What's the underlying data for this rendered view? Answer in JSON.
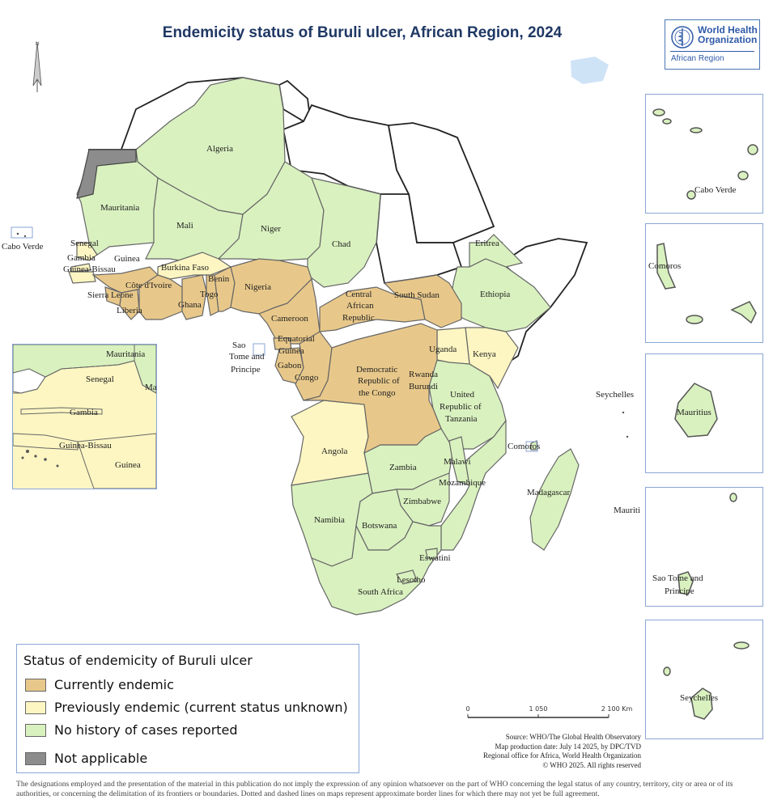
{
  "title": "Endemicity status of Buruli ulcer, African Region, 2024",
  "logo": {
    "name_line1": "World Health",
    "name_line2": "Organization",
    "region": "African Region"
  },
  "colors": {
    "currently_endemic": "#e8c88a",
    "previously_endemic": "#fdf6c2",
    "no_history": "#d9f1bf",
    "not_applicable": "#8c8c8c",
    "outside_region": "#ffffff",
    "water": "#cfe3f7",
    "border": "#555555"
  },
  "legend": {
    "title": "Status of endemicity of Buruli ulcer",
    "items": [
      {
        "key": "currently_endemic",
        "label": "Currently endemic"
      },
      {
        "key": "previously_endemic",
        "label": "Previously endemic (current status unknown)"
      },
      {
        "key": "no_history",
        "label": "No history of cases reported"
      },
      {
        "key": "not_applicable",
        "label": "Not applicable"
      }
    ]
  },
  "countries": {
    "currently_endemic": [
      "Nigeria",
      "Benin",
      "Togo",
      "Ghana",
      "Cote d'Ivoire",
      "Liberia",
      "Sierra Leone",
      "Cameroon",
      "Central African Republic",
      "South Sudan",
      "Equatorial Guinea",
      "Gabon",
      "Congo",
      "Democratic Republic of the Congo",
      "Guinea"
    ],
    "previously_endemic": [
      "Burkina Faso",
      "Angola",
      "Kenya",
      "Uganda",
      "Senegal",
      "Gambia",
      "Guinea-Bissau"
    ],
    "no_history": [
      "Algeria",
      "Mauritania",
      "Mali",
      "Niger",
      "Chad",
      "Eritrea",
      "Ethiopia",
      "Rwanda",
      "Burundi",
      "United Republic of Tanzania",
      "Zambia",
      "Malawi",
      "Mozambique",
      "Zimbabwe",
      "Namibia",
      "Botswana",
      "South Africa",
      "Eswatini",
      "Lesotho",
      "Madagascar",
      "Comoros",
      "Cabo Verde",
      "Sao Tome and Principe",
      "Mauritius",
      "Seychelles"
    ],
    "not_applicable": [
      "Western Sahara"
    ]
  },
  "map_labels": {
    "algeria": "Algeria",
    "mauritania": "Mauritania",
    "mali": "Mali",
    "niger": "Niger",
    "chad": "Chad",
    "eritrea": "Eritrea",
    "ethiopia": "Ethiopia",
    "senegal": "Senegal",
    "gambia": "Gambia",
    "guinea_bissau": "Guinea-Bissau",
    "guinea": "Guinea",
    "burkina_faso": "Burkina Faso",
    "benin": "Benin",
    "cote_divoire": "Côte d'Ivoire",
    "togo": "Togo",
    "sierra_leone": "Sierra Leone",
    "ghana": "Ghana",
    "liberia": "Liberia",
    "nigeria": "Nigeria",
    "cameroon": "Cameroon",
    "car_1": "Central",
    "car_2": "African",
    "car_3": "Republic",
    "south_sudan": "South Sudan",
    "stp_1": "Sao",
    "stp_2": "Tome and",
    "stp_3": "Principe",
    "eq_guinea_1": "Equatorial",
    "eq_guinea_2": "Guinea",
    "gabon": "Gabon",
    "congo": "Congo",
    "uganda": "Uganda",
    "kenya": "Kenya",
    "drc_1": "Democratic",
    "drc_2": "Republic of",
    "drc_3": "the Congo",
    "rwanda": "Rwanda",
    "burundi": "Burundi",
    "tanzania_1": "United",
    "tanzania_2": "Republic of",
    "tanzania_3": "Tanzania",
    "seychelles": "Seychelles",
    "angola": "Angola",
    "comoros": "Comoros",
    "zambia": "Zambia",
    "malawi": "Malawi",
    "mozambique": "Mozambique",
    "madagascar": "Madagascar",
    "mauriti": "Mauriti",
    "zimbabwe": "Zimbabwe",
    "namibia": "Namibia",
    "botswana": "Botswana",
    "eswatini": "Eswatini",
    "lesotho": "Lesotho",
    "south_africa": "South Africa",
    "cabo_verde": "Cabo Verde"
  },
  "insets": {
    "west_africa": {
      "mauritania": "Mauritania",
      "senegal": "Senegal",
      "ma": "Ma",
      "gambia": "Gambia",
      "guinea_bissau": "Guinea-Bissau",
      "guinea": "Guinea"
    },
    "cabo_verde": "Cabo Verde",
    "comoros": "Comoros",
    "mauritius": "Mauritius",
    "stp_1": "Sao Tome and",
    "stp_2": "Principe",
    "seychelles": "Seychelles"
  },
  "scalebar": {
    "t0": "0",
    "t1": "1 050",
    "t2": "2 100 Km"
  },
  "source": {
    "line1": "Source: WHO/The Global Health Observatory",
    "line2": "Map production date: July 14 2025,  by DPC/TVD",
    "line3": "Regional office for Africa, World Health Organization",
    "line4": "© WHO 2025. All rights reserved"
  },
  "disclaimer": "The designations employed and the presentation of the material in this publication do not imply the expression of any opinion whatsoever on the part of WHO concerning the legal status of any country, territory, city or area or of its authorities, or concerning the delimitation of its frontiers or boundaries. Dotted and dashed lines on maps represent approximate border lines for which there may not yet be full agreement."
}
